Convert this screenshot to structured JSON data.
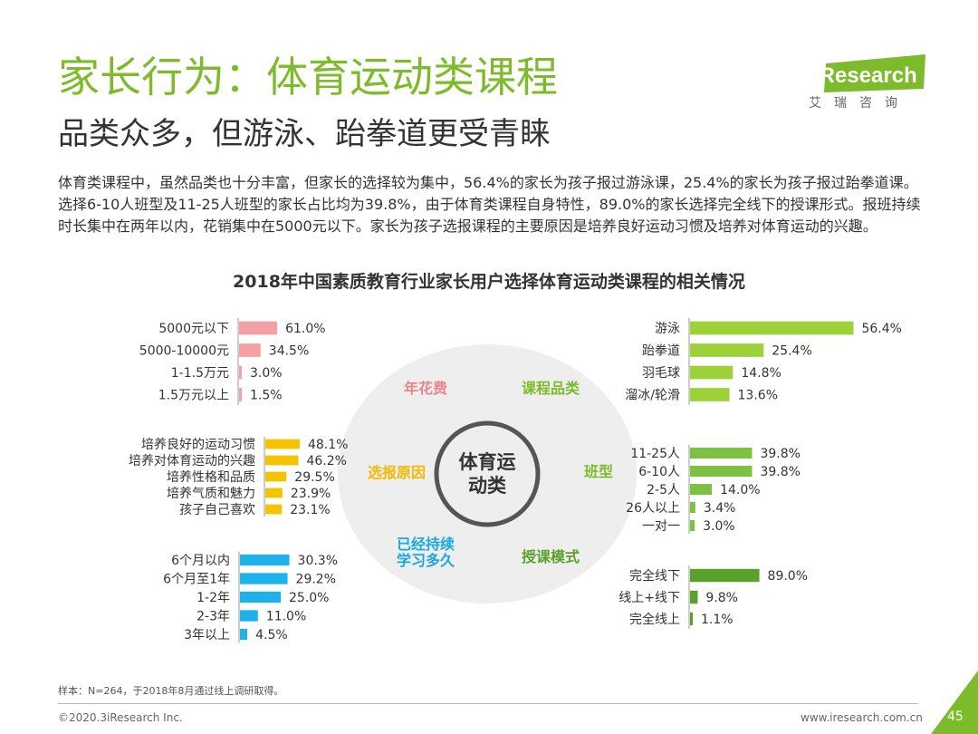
{
  "header": {
    "title": "家长行为：体育运动类课程",
    "subtitle": "品类众多，但游泳、跆拳道更受青睐",
    "logo_text": "iResearch",
    "logo_sub": "艾瑞咨询"
  },
  "description": "体育类课程中，虽然品类也十分丰富，但家长的选择较为集中，56.4%的家长为孩子报过游泳课，25.4%的家长为孩子报过跆拳道课。选择6-10人班型及11-25人班型的家长占比均为39.8%，由于体育类课程自身特性，89.0%的家长选择完全线下的授课形式。报班持续时长集中在两年以内，花销集中在5000元以下。家长为孩子选报课程的主要原因是培养良好运动习惯及培养对体育运动的兴趣。",
  "chart_title": "2018年中国素质教育行业家长用户选择体育运动类课程的相关情况",
  "center": {
    "label_line1": "体育运",
    "label_line2": "动类",
    "spokes": [
      {
        "label": "年花费",
        "color": "#e8858a"
      },
      {
        "label": "课程品类",
        "color": "#7dbb2a"
      },
      {
        "label": "选报原因",
        "color": "#f5b800"
      },
      {
        "label": "班型",
        "color": "#7dbb2a"
      },
      {
        "label": "已经持续\n学习多久",
        "color": "#1aa7e0"
      },
      {
        "label": "授课模式",
        "color": "#5aa02c"
      }
    ]
  },
  "chart_data": [
    {
      "type": "bar",
      "name": "年花费",
      "color": "#f4a0a5",
      "categories": [
        "5000元以下",
        "5000-10000元",
        "1-1.5万元",
        "1.5万元以上"
      ],
      "values": [
        61.0,
        34.5,
        3.0,
        1.5
      ],
      "labels": [
        "61.0%",
        "34.5%",
        "3.0%",
        "1.5%"
      ]
    },
    {
      "type": "bar",
      "name": "选报原因",
      "color": "#f5c400",
      "categories": [
        "培养良好的运动习惯",
        "培养对体育运动的兴趣",
        "培养性格和品质",
        "培养气质和魅力",
        "孩子自己喜欢"
      ],
      "values": [
        48.1,
        46.2,
        29.5,
        23.9,
        23.1
      ],
      "labels": [
        "48.1%",
        "46.2%",
        "29.5%",
        "23.9%",
        "23.1%"
      ]
    },
    {
      "type": "bar",
      "name": "已经持续学习多久",
      "color": "#1fb2ea",
      "categories": [
        "6个月以内",
        "6个月至1年",
        "1-2年",
        "2-3年",
        "3年以上"
      ],
      "values": [
        30.3,
        29.2,
        25.0,
        11.0,
        4.5
      ],
      "labels": [
        "30.3%",
        "29.2%",
        "25.0%",
        "11.0%",
        "4.5%"
      ]
    },
    {
      "type": "bar",
      "name": "课程品类",
      "color": "#9dd13a",
      "categories": [
        "游泳",
        "跆拳道",
        "羽毛球",
        "溜冰/轮滑"
      ],
      "values": [
        56.4,
        25.4,
        14.8,
        13.6
      ],
      "labels": [
        "56.4%",
        "25.4%",
        "14.8%",
        "13.6%"
      ]
    },
    {
      "type": "bar",
      "name": "班型",
      "color": "#7cc142",
      "categories": [
        "11-25人",
        "6-10人",
        "2-5人",
        "26人以上",
        "一对一"
      ],
      "values": [
        39.8,
        39.8,
        14.0,
        3.4,
        3.0
      ],
      "labels": [
        "39.8%",
        "39.8%",
        "14.0%",
        "3.4%",
        "3.0%"
      ]
    },
    {
      "type": "bar",
      "name": "授课模式",
      "color": "#5aa02c",
      "categories": [
        "完全线下",
        "线上+线下",
        "完全线上"
      ],
      "values": [
        89.0,
        9.8,
        1.1
      ],
      "labels": [
        "89.0%",
        "9.8%",
        "1.1%"
      ]
    }
  ],
  "footer": {
    "note": "样本：N=264，于2018年8月通过线上调研取得。",
    "copyright": "©2020.3iResearch Inc.",
    "url": "www.iresearch.com.cn",
    "page": "45"
  }
}
